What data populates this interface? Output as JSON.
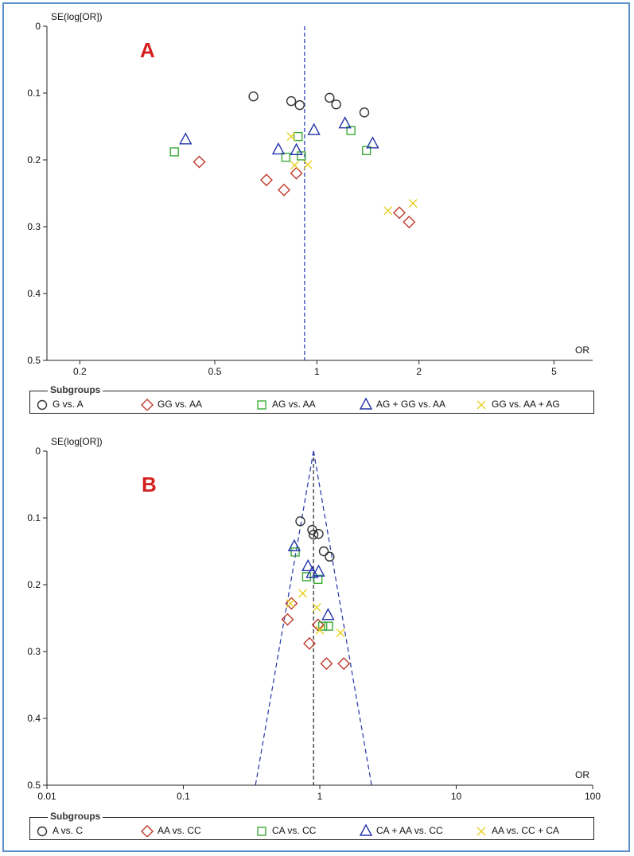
{
  "chart_data": [
    {
      "type": "scatter",
      "panel": "A",
      "title": "",
      "panel_label": "A",
      "xlabel": "OR",
      "ylabel": "SE(log[OR])",
      "xscale": "log",
      "xlim": [
        0.16,
        6.5
      ],
      "ylim": [
        0,
        0.5
      ],
      "xticks": [
        0.2,
        0.5,
        1,
        2,
        5
      ],
      "xtick_labels": [
        "0.2",
        "0.5",
        "1",
        "2",
        "5"
      ],
      "yticks": [
        0,
        0.1,
        0.2,
        0.3,
        0.4,
        0.5
      ],
      "ytick_labels": [
        "0",
        "0.1",
        "0.2",
        "0.3",
        "0.4",
        "0.5"
      ],
      "reference_line": 0.92,
      "funnel": false,
      "legend_title": "Subgroups",
      "series": [
        {
          "name": "G vs. A",
          "marker": "circle",
          "color": "#333333",
          "points": [
            [
              0.65,
              0.105
            ],
            [
              0.84,
              0.112
            ],
            [
              0.89,
              0.118
            ],
            [
              1.09,
              0.107
            ],
            [
              1.14,
              0.117
            ],
            [
              1.38,
              0.129
            ]
          ]
        },
        {
          "name": "GG vs. AA",
          "marker": "diamond",
          "color": "#c0392b",
          "points": [
            [
              0.45,
              0.203
            ],
            [
              0.71,
              0.23
            ],
            [
              0.8,
              0.245
            ],
            [
              0.87,
              0.22
            ],
            [
              1.75,
              0.279
            ],
            [
              1.87,
              0.293
            ]
          ]
        },
        {
          "name": "AG vs. AA",
          "marker": "square",
          "color": "#3aaa35",
          "points": [
            [
              0.38,
              0.188
            ],
            [
              0.81,
              0.196
            ],
            [
              0.88,
              0.165
            ],
            [
              0.9,
              0.194
            ],
            [
              1.26,
              0.156
            ],
            [
              1.4,
              0.186
            ]
          ]
        },
        {
          "name": "AG + GG vs. AA",
          "marker": "triangle",
          "color": "#2233aa",
          "points": [
            [
              0.41,
              0.17
            ],
            [
              0.77,
              0.185
            ],
            [
              0.87,
              0.186
            ],
            [
              0.98,
              0.156
            ],
            [
              1.21,
              0.146
            ],
            [
              1.46,
              0.176
            ]
          ]
        },
        {
          "name": "GG vs. AA + AG",
          "marker": "cross",
          "color": "#e8d020",
          "points": [
            [
              0.84,
              0.165
            ],
            [
              0.86,
              0.208
            ],
            [
              0.94,
              0.207
            ],
            [
              1.62,
              0.276
            ],
            [
              1.92,
              0.265
            ]
          ]
        }
      ]
    },
    {
      "type": "scatter",
      "panel": "B",
      "title": "",
      "panel_label": "B",
      "xlabel": "OR",
      "ylabel": "SE(log[OR])",
      "xscale": "log",
      "xlim": [
        0.01,
        100
      ],
      "ylim": [
        0,
        0.5
      ],
      "xticks": [
        0.01,
        0.1,
        1,
        10,
        100
      ],
      "xtick_labels": [
        "0.01",
        "0.1",
        "1",
        "10",
        "100"
      ],
      "yticks": [
        0,
        0.1,
        0.2,
        0.3,
        0.4,
        0.5
      ],
      "ytick_labels": [
        "0",
        "0.1",
        "0.2",
        "0.3",
        "0.4",
        "0.5"
      ],
      "reference_line": 0.9,
      "funnel": true,
      "legend_title": "Subgroups",
      "series": [
        {
          "name": "A vs. C",
          "marker": "circle",
          "color": "#333333",
          "points": [
            [
              0.72,
              0.105
            ],
            [
              0.88,
              0.118
            ],
            [
              0.9,
              0.125
            ],
            [
              0.98,
              0.124
            ],
            [
              1.07,
              0.15
            ],
            [
              1.18,
              0.158
            ]
          ]
        },
        {
          "name": "AA vs. CC",
          "marker": "diamond",
          "color": "#c0392b",
          "points": [
            [
              0.62,
              0.228
            ],
            [
              0.58,
              0.252
            ],
            [
              0.84,
              0.288
            ],
            [
              0.97,
              0.26
            ],
            [
              1.12,
              0.318
            ],
            [
              1.5,
              0.318
            ]
          ]
        },
        {
          "name": "CA vs. CC",
          "marker": "square",
          "color": "#3aaa35",
          "points": [
            [
              0.66,
              0.151
            ],
            [
              0.8,
              0.188
            ],
            [
              0.97,
              0.192
            ],
            [
              1.05,
              0.262
            ],
            [
              1.16,
              0.262
            ]
          ]
        },
        {
          "name": "CA + AA vs. CC",
          "marker": "triangle",
          "color": "#2233aa",
          "points": [
            [
              0.65,
              0.143
            ],
            [
              0.82,
              0.173
            ],
            [
              0.88,
              0.183
            ],
            [
              0.98,
              0.181
            ],
            [
              1.15,
              0.246
            ]
          ]
        },
        {
          "name": "AA vs. CC + CA",
          "marker": "cross",
          "color": "#e8d020",
          "points": [
            [
              0.61,
              0.228
            ],
            [
              0.75,
              0.213
            ],
            [
              0.95,
              0.234
            ],
            [
              1.0,
              0.268
            ],
            [
              1.42,
              0.272
            ]
          ]
        }
      ]
    }
  ]
}
